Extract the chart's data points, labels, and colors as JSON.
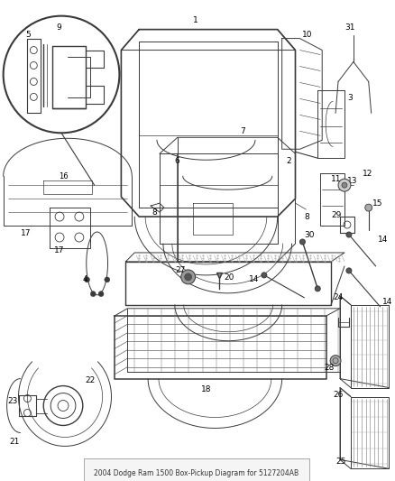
{
  "title": "2004 Dodge Ram 1500 Box-Pickup Diagram for 5127204AB",
  "bg_color": "#ffffff",
  "line_color": "#3a3a3a",
  "label_color": "#000000",
  "figsize": [
    4.38,
    5.33
  ],
  "dpi": 100
}
